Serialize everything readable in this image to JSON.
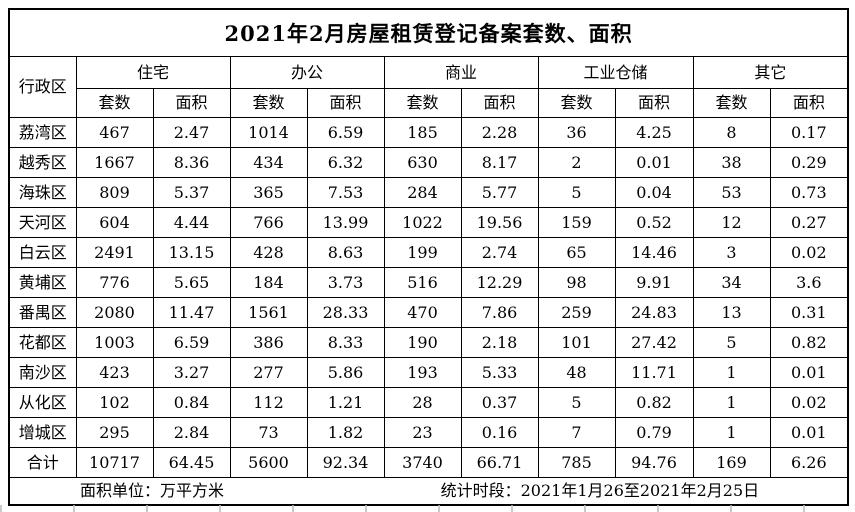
{
  "title": "2021年2月房屋租赁登记备案套数、面积",
  "header": {
    "district": "行政区",
    "groups": [
      "住宅",
      "办公",
      "商业",
      "工业仓储",
      "其它"
    ],
    "units_label": "套数",
    "area_label": "面积"
  },
  "rows": [
    {
      "district": "荔湾区",
      "values": [
        "467",
        "2.47",
        "1014",
        "6.59",
        "185",
        "2.28",
        "36",
        "4.25",
        "8",
        "0.17"
      ]
    },
    {
      "district": "越秀区",
      "values": [
        "1667",
        "8.36",
        "434",
        "6.32",
        "630",
        "8.17",
        "2",
        "0.01",
        "38",
        "0.29"
      ]
    },
    {
      "district": "海珠区",
      "values": [
        "809",
        "5.37",
        "365",
        "7.53",
        "284",
        "5.77",
        "5",
        "0.04",
        "53",
        "0.73"
      ]
    },
    {
      "district": "天河区",
      "values": [
        "604",
        "4.44",
        "766",
        "13.99",
        "1022",
        "19.56",
        "159",
        "0.52",
        "12",
        "0.27"
      ]
    },
    {
      "district": "白云区",
      "values": [
        "2491",
        "13.15",
        "428",
        "8.63",
        "199",
        "2.74",
        "65",
        "14.46",
        "3",
        "0.02"
      ]
    },
    {
      "district": "黄埔区",
      "values": [
        "776",
        "5.65",
        "184",
        "3.73",
        "516",
        "12.29",
        "98",
        "9.91",
        "34",
        "3.6"
      ]
    },
    {
      "district": "番禺区",
      "values": [
        "2080",
        "11.47",
        "1561",
        "28.33",
        "470",
        "7.86",
        "259",
        "24.83",
        "13",
        "0.31"
      ]
    },
    {
      "district": "花都区",
      "values": [
        "1003",
        "6.59",
        "386",
        "8.33",
        "190",
        "2.18",
        "101",
        "27.42",
        "5",
        "0.82"
      ]
    },
    {
      "district": "南沙区",
      "values": [
        "423",
        "3.27",
        "277",
        "5.86",
        "193",
        "5.33",
        "48",
        "11.71",
        "1",
        "0.01"
      ]
    },
    {
      "district": "从化区",
      "values": [
        "102",
        "0.84",
        "112",
        "1.21",
        "28",
        "0.37",
        "5",
        "0.82",
        "1",
        "0.02"
      ]
    },
    {
      "district": "增城区",
      "values": [
        "295",
        "2.84",
        "73",
        "1.82",
        "23",
        "0.16",
        "7",
        "0.79",
        "1",
        "0.01"
      ]
    },
    {
      "district": "合计",
      "values": [
        "10717",
        "64.45",
        "5600",
        "92.34",
        "3740",
        "66.71",
        "785",
        "94.76",
        "169",
        "6.26"
      ]
    }
  ],
  "footer": {
    "area_unit": "面积单位：万平方米",
    "period": "统计时段：2021年1月26至2021年2月25日"
  },
  "colors": {
    "border": "#000000",
    "background": "#ffffff",
    "gridline": "#bdbdbd",
    "text": "#000000"
  }
}
